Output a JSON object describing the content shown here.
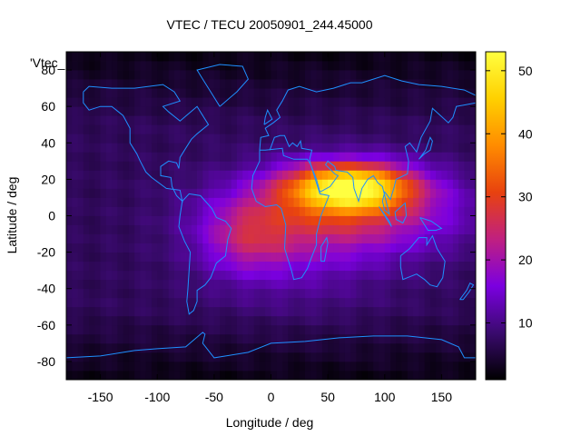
{
  "chart_data": {
    "type": "heatmap",
    "title": "VTEC / TECU 20050901_244.45000",
    "xlabel": "Longitude / deg",
    "ylabel": "Latitude / deg",
    "plot_key_label": "'Vtec_",
    "xlim": [
      -180,
      180
    ],
    "ylim": [
      -90,
      90
    ],
    "x_ticks": [
      -150,
      -100,
      -50,
      0,
      50,
      100,
      150
    ],
    "y_ticks": [
      -80,
      -60,
      -40,
      -20,
      0,
      20,
      40,
      60,
      80
    ],
    "colorbar": {
      "range": [
        1,
        53
      ],
      "ticks": [
        10,
        20,
        30,
        40,
        50
      ],
      "colormap": [
        "#000000",
        "#3a0a6e",
        "#7b00e0",
        "#c02080",
        "#e8420f",
        "#ff8c00",
        "#ffd000",
        "#ffff40"
      ]
    },
    "grid": false,
    "overlay": "coastlines",
    "overlay_color": "#1e90ff",
    "blobs": [
      {
        "lon": 70,
        "lat": 16,
        "sigma_lon": 38,
        "sigma_lat": 9,
        "peak": 38
      },
      {
        "lon": 70,
        "lat": 2,
        "sigma_lon": 70,
        "sigma_lat": 16,
        "peak": 16
      },
      {
        "lon": -20,
        "lat": -12,
        "sigma_lon": 28,
        "sigma_lat": 14,
        "peak": 10
      },
      {
        "lon": 20,
        "lat": -15,
        "sigma_lon": 60,
        "sigma_lat": 25,
        "peak": 6
      }
    ],
    "background_level": 7
  }
}
